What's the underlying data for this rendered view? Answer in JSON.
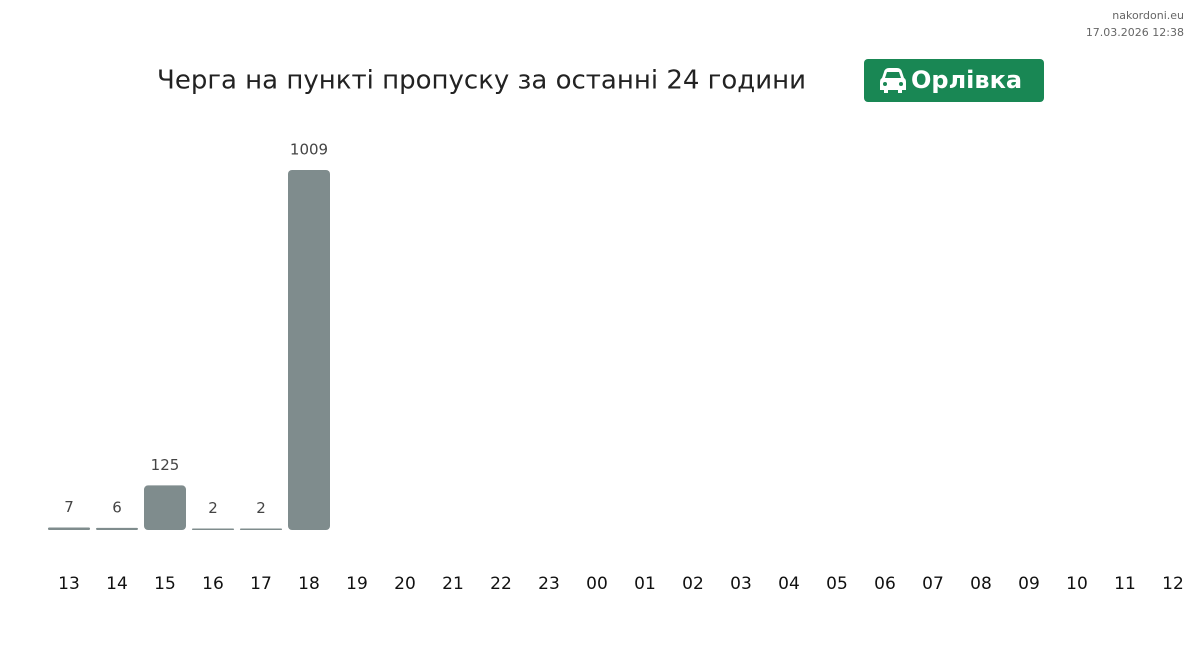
{
  "chart_data": {
    "type": "bar",
    "title": "Черга на пункті пропуску за останні 24 години",
    "badge": "Орлівка",
    "source": "nakordoni.eu",
    "timestamp": "17.03.2026 12:38",
    "categories": [
      "13",
      "14",
      "15",
      "16",
      "17",
      "18",
      "19",
      "20",
      "21",
      "22",
      "23",
      "00",
      "01",
      "02",
      "03",
      "04",
      "05",
      "06",
      "07",
      "08",
      "09",
      "10",
      "11",
      "12"
    ],
    "values": [
      7,
      6,
      125,
      2,
      2,
      1009,
      null,
      null,
      null,
      null,
      null,
      null,
      null,
      null,
      null,
      null,
      null,
      null,
      null,
      null,
      null,
      null,
      null,
      null
    ],
    "color": "#7f8c8d"
  }
}
